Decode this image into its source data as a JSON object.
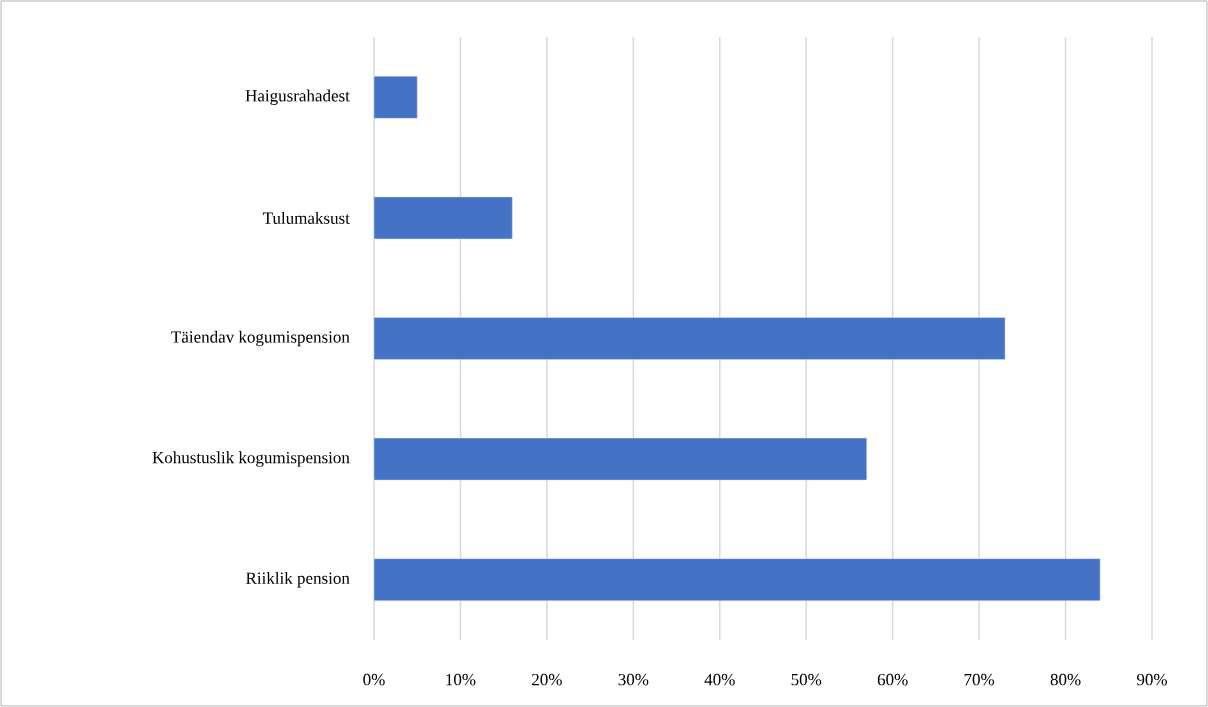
{
  "chart_data": {
    "type": "bar",
    "orientation": "horizontal",
    "categories": [
      "Haigusrahadest",
      "Tulumaksust",
      "Täiendav kogumispension",
      "Kohustuslik kogumispension",
      "Riiklik pension"
    ],
    "values": [
      5,
      16,
      73,
      57,
      84
    ],
    "color": "#4472c4",
    "xlim": [
      0,
      90
    ],
    "xticks": [
      {
        "value": 0,
        "label": "0%"
      },
      {
        "value": 10,
        "label": "10%"
      },
      {
        "value": 20,
        "label": "20%"
      },
      {
        "value": 30,
        "label": "30%"
      },
      {
        "value": 40,
        "label": "40%"
      },
      {
        "value": 50,
        "label": "50%"
      },
      {
        "value": 60,
        "label": "60%"
      },
      {
        "value": 70,
        "label": "70%"
      },
      {
        "value": 80,
        "label": "80%"
      },
      {
        "value": 90,
        "label": "90%"
      }
    ],
    "grid": "x"
  }
}
